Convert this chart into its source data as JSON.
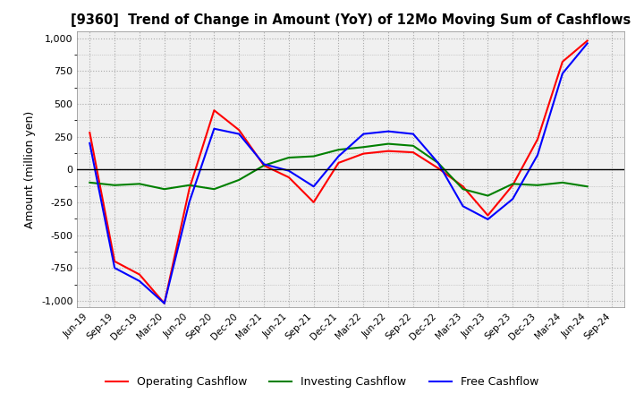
{
  "title": "[9360]  Trend of Change in Amount (YoY) of 12Mo Moving Sum of Cashflows",
  "ylabel": "Amount (million yen)",
  "ylim": [
    -1050,
    1050
  ],
  "yticks": [
    -1000,
    -750,
    -500,
    -250,
    0,
    250,
    500,
    750,
    1000
  ],
  "x_labels": [
    "Jun-19",
    "Sep-19",
    "Dec-19",
    "Mar-20",
    "Jun-20",
    "Sep-20",
    "Dec-20",
    "Mar-21",
    "Jun-21",
    "Sep-21",
    "Dec-21",
    "Mar-22",
    "Jun-22",
    "Sep-22",
    "Dec-22",
    "Mar-23",
    "Jun-23",
    "Sep-23",
    "Dec-23",
    "Mar-24",
    "Jun-24",
    "Sep-24"
  ],
  "operating": [
    280,
    -700,
    -800,
    -1020,
    -150,
    450,
    300,
    30,
    -60,
    -250,
    50,
    120,
    140,
    130,
    10,
    -130,
    -350,
    -120,
    230,
    820,
    980,
    null
  ],
  "investing": [
    -100,
    -120,
    -110,
    -150,
    -120,
    -150,
    -80,
    30,
    90,
    100,
    150,
    170,
    195,
    180,
    50,
    -150,
    -200,
    -110,
    -120,
    -100,
    -130,
    null
  ],
  "free": [
    200,
    -750,
    -850,
    -1020,
    -250,
    310,
    270,
    40,
    -10,
    -130,
    100,
    270,
    290,
    270,
    50,
    -280,
    -380,
    -225,
    110,
    730,
    960,
    null
  ],
  "operating_color": "#ff0000",
  "investing_color": "#008000",
  "free_color": "#0000ff",
  "background_color": "#ffffff",
  "plot_bg_color": "#f0f0f0",
  "grid_color": "#aaaaaa"
}
